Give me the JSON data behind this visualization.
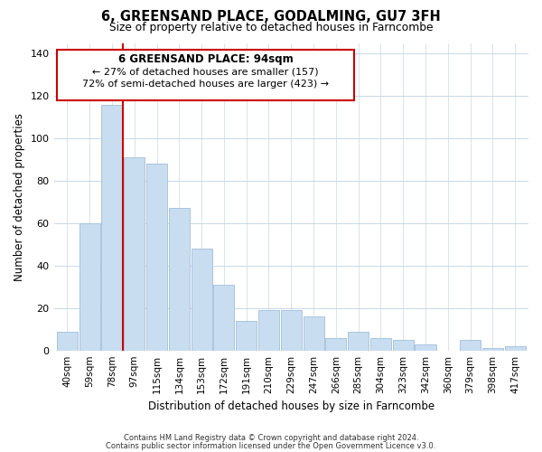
{
  "title": "6, GREENSAND PLACE, GODALMING, GU7 3FH",
  "subtitle": "Size of property relative to detached houses in Farncombe",
  "xlabel": "Distribution of detached houses by size in Farncombe",
  "ylabel": "Number of detached properties",
  "bar_labels": [
    "40sqm",
    "59sqm",
    "78sqm",
    "97sqm",
    "115sqm",
    "134sqm",
    "153sqm",
    "172sqm",
    "191sqm",
    "210sqm",
    "229sqm",
    "247sqm",
    "266sqm",
    "285sqm",
    "304sqm",
    "323sqm",
    "342sqm",
    "360sqm",
    "379sqm",
    "398sqm",
    "417sqm"
  ],
  "bar_values": [
    9,
    60,
    116,
    91,
    88,
    67,
    48,
    31,
    14,
    19,
    19,
    16,
    6,
    9,
    6,
    5,
    3,
    0,
    5,
    1,
    2
  ],
  "bar_color": "#c9ddf0",
  "bar_edge_color": "#aac4de",
  "ylim": [
    0,
    145
  ],
  "yticks": [
    0,
    20,
    40,
    60,
    80,
    100,
    120,
    140
  ],
  "vline_bar_index": 2,
  "marker_label": "6 GREENSAND PLACE: 94sqm",
  "annotation_line1": "← 27% of detached houses are smaller (157)",
  "annotation_line2": "72% of semi-detached houses are larger (423) →",
  "vline_color": "#cc0000",
  "box_edge_color": "#cc0000",
  "footer_line1": "Contains HM Land Registry data © Crown copyright and database right 2024.",
  "footer_line2": "Contains public sector information licensed under the Open Government Licence v3.0.",
  "background_color": "#ffffff",
  "grid_color": "#c8d8e8"
}
